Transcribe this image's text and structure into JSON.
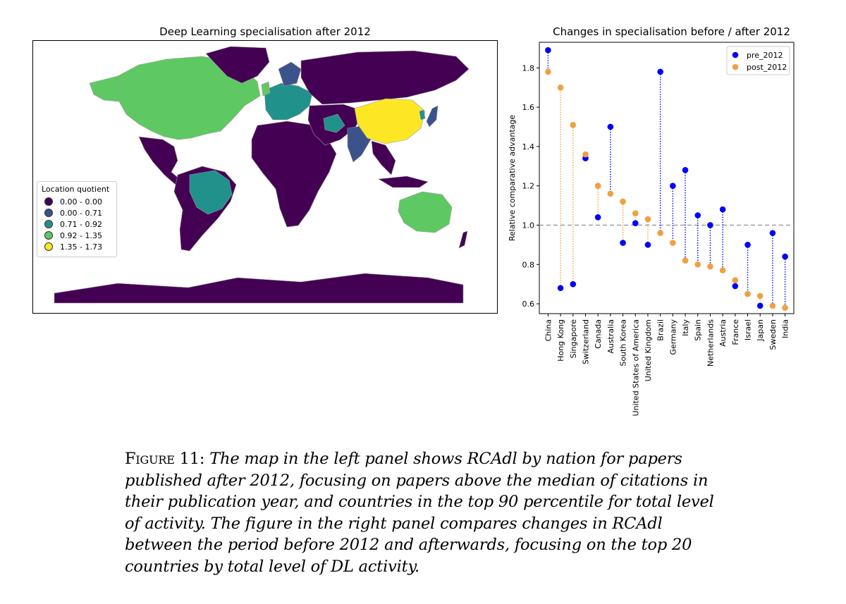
{
  "map": {
    "title": "Deep Learning specialisation after 2012",
    "legend": {
      "title": "Location quotient",
      "items": [
        {
          "label": "0.00 - 0.00",
          "color": "#440154"
        },
        {
          "label": "0.00 - 0.71",
          "color": "#3b528b"
        },
        {
          "label": "0.71 - 0.92",
          "color": "#21918c"
        },
        {
          "label": "0.92 - 1.35",
          "color": "#5ec962"
        },
        {
          "label": "1.35 - 1.73",
          "color": "#fde725"
        }
      ]
    },
    "colors": {
      "c0": "#440154",
      "c1": "#3b528b",
      "c2": "#21918c",
      "c3": "#5ec962",
      "c4": "#fde725"
    }
  },
  "chart_data": {
    "type": "scatter",
    "title": "Changes in specialisation before / after 2012",
    "ylabel": "Relative comparative advantage",
    "ylim": [
      0.55,
      1.93
    ],
    "yticks": [
      "0.6",
      "0.8",
      "1.0",
      "1.2",
      "1.4",
      "1.6",
      "1.8"
    ],
    "reference_line": 1.0,
    "legend_position": "top-right",
    "categories": [
      "China",
      "Hong Kong",
      "Singapore",
      "Switzerland",
      "Canada",
      "Australia",
      "South Korea",
      "United States of America",
      "United Kingdom",
      "Brazil",
      "Germany",
      "Italy",
      "Spain",
      "Netherlands",
      "Austria",
      "France",
      "Israel",
      "Japan",
      "Sweden",
      "India"
    ],
    "series": [
      {
        "name": "pre_2012",
        "color": "#0000ff",
        "values": [
          1.89,
          0.68,
          0.7,
          1.34,
          1.04,
          1.5,
          0.91,
          1.01,
          0.9,
          1.78,
          1.2,
          1.28,
          1.05,
          1.0,
          1.08,
          0.69,
          0.9,
          0.59,
          0.96,
          0.84
        ]
      },
      {
        "name": "post_2012",
        "color": "#f0a040",
        "values": [
          1.78,
          1.7,
          1.51,
          1.36,
          1.2,
          1.16,
          1.12,
          1.06,
          1.03,
          0.96,
          0.91,
          0.82,
          0.8,
          0.79,
          0.77,
          0.72,
          0.65,
          0.64,
          0.59,
          0.58
        ]
      }
    ]
  },
  "caption": {
    "label": "Figure 11:",
    "text": "The map in the left panel shows RCAdl by nation for papers published after 2012, focusing on papers above the median of citations in their publication year, and countries in the top 90 percentile for total level of activity. The figure in the right panel compares changes in RCAdl between the period before 2012 and afterwards, focusing on the top 20 countries by total level of DL activity."
  }
}
